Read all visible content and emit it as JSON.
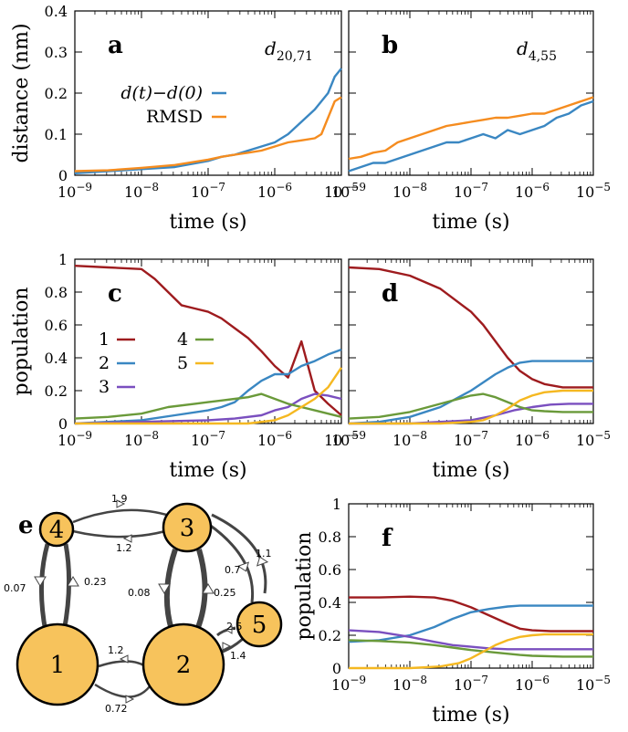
{
  "colors": {
    "red": "#9e1b1e",
    "blue": "#3a87c2",
    "purple": "#7a4fbf",
    "green": "#6a9a3a",
    "orange": "#f58c1f",
    "yellow": "#f5b821",
    "node": "#f7c35c",
    "edge": "#444444"
  },
  "chart_data": [
    {
      "id": "a",
      "type": "line",
      "letter": "a",
      "annotation": "d20,71",
      "xlabel": "time (s)",
      "ylabel": "distance (nm)",
      "xscale": "log",
      "xlim": [
        1e-09,
        1e-05
      ],
      "ylim": [
        0,
        0.4
      ],
      "yticks": [
        "0",
        "0.1",
        "0.2",
        "0.3",
        "0.4"
      ],
      "xticks": [
        "10−9",
        "10−8",
        "10−7",
        "10−6",
        "10−5"
      ],
      "legend": [
        {
          "label": "d(t)−d(0)",
          "color": "blue"
        },
        {
          "label": "RMSD",
          "color": "orange"
        }
      ],
      "series": [
        {
          "name": "d(t)−d(0)",
          "color": "blue",
          "x": [
            -9,
            -8.5,
            -8,
            -7.5,
            -7,
            -6.8,
            -6.6,
            -6.4,
            -6.2,
            -6,
            -5.8,
            -5.6,
            -5.4,
            -5.3,
            -5.2,
            -5.1,
            -5
          ],
          "y": [
            0.005,
            0.01,
            0.015,
            0.02,
            0.035,
            0.045,
            0.05,
            0.06,
            0.07,
            0.08,
            0.1,
            0.13,
            0.16,
            0.18,
            0.2,
            0.24,
            0.26
          ]
        },
        {
          "name": "RMSD",
          "color": "orange",
          "x": [
            -9,
            -8.5,
            -8,
            -7.5,
            -7,
            -6.8,
            -6.6,
            -6.4,
            -6.2,
            -6,
            -5.8,
            -5.6,
            -5.4,
            -5.3,
            -5.2,
            -5.1,
            -5
          ],
          "y": [
            0.01,
            0.012,
            0.018,
            0.025,
            0.038,
            0.045,
            0.05,
            0.055,
            0.06,
            0.07,
            0.08,
            0.085,
            0.09,
            0.1,
            0.14,
            0.18,
            0.19
          ]
        }
      ]
    },
    {
      "id": "b",
      "type": "line",
      "letter": "b",
      "annotation": "d4,55",
      "xlabel": "time (s)",
      "ylabel": "",
      "xscale": "log",
      "xlim": [
        1e-09,
        1e-05
      ],
      "ylim": [
        0,
        0.4
      ],
      "xticks": [
        "10−9",
        "10−8",
        "10−7",
        "10−6",
        "10−5"
      ],
      "series": [
        {
          "name": "d(t)−d(0)",
          "color": "blue",
          "x": [
            -9,
            -8.8,
            -8.6,
            -8.4,
            -8.2,
            -8,
            -7.8,
            -7.6,
            -7.4,
            -7.2,
            -7,
            -6.8,
            -6.6,
            -6.4,
            -6.2,
            -6,
            -5.8,
            -5.6,
            -5.4,
            -5.2,
            -5
          ],
          "y": [
            0.01,
            0.02,
            0.03,
            0.03,
            0.04,
            0.05,
            0.06,
            0.07,
            0.08,
            0.08,
            0.09,
            0.1,
            0.09,
            0.11,
            0.1,
            0.11,
            0.12,
            0.14,
            0.15,
            0.17,
            0.18
          ]
        },
        {
          "name": "RMSD",
          "color": "orange",
          "x": [
            -9,
            -8.8,
            -8.6,
            -8.4,
            -8.2,
            -8,
            -7.8,
            -7.6,
            -7.4,
            -7.2,
            -7,
            -6.8,
            -6.6,
            -6.4,
            -6.2,
            -6,
            -5.8,
            -5.6,
            -5.4,
            -5.2,
            -5
          ],
          "y": [
            0.04,
            0.045,
            0.055,
            0.06,
            0.08,
            0.09,
            0.1,
            0.11,
            0.12,
            0.125,
            0.13,
            0.135,
            0.14,
            0.14,
            0.145,
            0.15,
            0.15,
            0.16,
            0.17,
            0.18,
            0.19
          ]
        }
      ]
    },
    {
      "id": "c",
      "type": "line",
      "letter": "c",
      "xlabel": "time (s)",
      "ylabel": "population",
      "xscale": "log",
      "xlim": [
        1e-09,
        1e-05
      ],
      "ylim": [
        0,
        1
      ],
      "yticks": [
        "0",
        "0.2",
        "0.4",
        "0.6",
        "0.8",
        "1"
      ],
      "xticks": [
        "10−9",
        "10−8",
        "10−7",
        "10−6",
        "10−5"
      ],
      "legend": [
        {
          "label": "1",
          "color": "red"
        },
        {
          "label": "2",
          "color": "blue"
        },
        {
          "label": "3",
          "color": "purple"
        },
        {
          "label": "4",
          "color": "green"
        },
        {
          "label": "5",
          "color": "yellow"
        }
      ],
      "series": [
        {
          "name": "1",
          "color": "red",
          "x": [
            -9,
            -8.5,
            -8,
            -7.8,
            -7.6,
            -7.4,
            -7.2,
            -7,
            -6.8,
            -6.6,
            -6.4,
            -6.2,
            -6,
            -5.8,
            -5.6,
            -5.4,
            -5.2,
            -5
          ],
          "y": [
            0.96,
            0.95,
            0.94,
            0.88,
            0.8,
            0.72,
            0.7,
            0.68,
            0.64,
            0.58,
            0.52,
            0.44,
            0.35,
            0.28,
            0.5,
            0.2,
            0.12,
            0.05
          ]
        },
        {
          "name": "2",
          "color": "blue",
          "x": [
            -9,
            -8.5,
            -8,
            -7.5,
            -7,
            -6.8,
            -6.6,
            -6.4,
            -6.2,
            -6,
            -5.8,
            -5.6,
            -5.4,
            -5.2,
            -5
          ],
          "y": [
            0.0,
            0.01,
            0.02,
            0.05,
            0.08,
            0.1,
            0.13,
            0.2,
            0.26,
            0.3,
            0.3,
            0.35,
            0.38,
            0.42,
            0.45
          ]
        },
        {
          "name": "3",
          "color": "purple",
          "x": [
            -9,
            -8,
            -7,
            -6.6,
            -6.2,
            -6,
            -5.8,
            -5.6,
            -5.4,
            -5.2,
            -5
          ],
          "y": [
            0.0,
            0.01,
            0.02,
            0.03,
            0.05,
            0.08,
            0.1,
            0.15,
            0.18,
            0.17,
            0.15
          ]
        },
        {
          "name": "4",
          "color": "green",
          "x": [
            -9,
            -8.5,
            -8,
            -7.6,
            -7.2,
            -7,
            -6.8,
            -6.6,
            -6.4,
            -6.2,
            -6,
            -5.8,
            -5.6,
            -5.4,
            -5.2,
            -5
          ],
          "y": [
            0.03,
            0.04,
            0.06,
            0.1,
            0.12,
            0.13,
            0.14,
            0.15,
            0.16,
            0.18,
            0.15,
            0.12,
            0.1,
            0.08,
            0.06,
            0.04
          ]
        },
        {
          "name": "5",
          "color": "yellow",
          "x": [
            -9,
            -7,
            -6.4,
            -6,
            -5.8,
            -5.6,
            -5.4,
            -5.2,
            -5.1,
            -5
          ],
          "y": [
            0.0,
            0.0,
            0.0,
            0.02,
            0.05,
            0.1,
            0.15,
            0.22,
            0.28,
            0.34
          ]
        }
      ]
    },
    {
      "id": "d",
      "type": "line",
      "letter": "d",
      "xlabel": "time (s)",
      "ylabel": "",
      "xscale": "log",
      "xlim": [
        1e-09,
        1e-05
      ],
      "ylim": [
        0,
        1
      ],
      "xticks": [
        "10−9",
        "10−8",
        "10−7",
        "10−6",
        "10−5"
      ],
      "series": [
        {
          "name": "1",
          "color": "red",
          "x": [
            -9,
            -8.5,
            -8,
            -7.5,
            -7,
            -6.8,
            -6.6,
            -6.4,
            -6.2,
            -6,
            -5.8,
            -5.5,
            -5.2,
            -5
          ],
          "y": [
            0.95,
            0.94,
            0.9,
            0.82,
            0.68,
            0.6,
            0.5,
            0.4,
            0.32,
            0.27,
            0.24,
            0.22,
            0.22,
            0.22
          ]
        },
        {
          "name": "2",
          "color": "blue",
          "x": [
            -9,
            -8.5,
            -8,
            -7.5,
            -7,
            -6.8,
            -6.6,
            -6.4,
            -6.2,
            -6,
            -5.8,
            -5.5,
            -5
          ],
          "y": [
            0.0,
            0.01,
            0.04,
            0.1,
            0.2,
            0.25,
            0.3,
            0.34,
            0.37,
            0.38,
            0.38,
            0.38,
            0.38
          ]
        },
        {
          "name": "3",
          "color": "purple",
          "x": [
            -9,
            -8,
            -7.5,
            -7,
            -6.6,
            -6.3,
            -6,
            -5.7,
            -5.4,
            -5
          ],
          "y": [
            0.0,
            0.0,
            0.01,
            0.02,
            0.05,
            0.08,
            0.1,
            0.115,
            0.12,
            0.12
          ]
        },
        {
          "name": "4",
          "color": "green",
          "x": [
            -9,
            -8.5,
            -8,
            -7.5,
            -7,
            -6.8,
            -6.6,
            -6.4,
            -6.2,
            -6,
            -5.8,
            -5.5,
            -5
          ],
          "y": [
            0.03,
            0.04,
            0.07,
            0.12,
            0.17,
            0.18,
            0.16,
            0.13,
            0.1,
            0.08,
            0.075,
            0.07,
            0.07
          ]
        },
        {
          "name": "5",
          "color": "yellow",
          "x": [
            -9,
            -7.5,
            -7,
            -6.8,
            -6.6,
            -6.4,
            -6.2,
            -6,
            -5.8,
            -5.5,
            -5
          ],
          "y": [
            0.0,
            0.0,
            0.01,
            0.02,
            0.05,
            0.09,
            0.14,
            0.17,
            0.19,
            0.2,
            0.2
          ]
        }
      ]
    },
    {
      "id": "f",
      "type": "line",
      "letter": "f",
      "xlabel": "time (s)",
      "ylabel": "population",
      "xscale": "log",
      "xlim": [
        1e-09,
        1e-05
      ],
      "ylim": [
        0,
        1
      ],
      "yticks": [
        "0",
        "0.2",
        "0.4",
        "0.6",
        "0.8",
        "1"
      ],
      "xticks": [
        "10−9",
        "10−8",
        "10−7",
        "10−6",
        "10−5"
      ],
      "series": [
        {
          "name": "1",
          "color": "red",
          "x": [
            -9,
            -8.5,
            -8,
            -7.6,
            -7.3,
            -7,
            -6.7,
            -6.4,
            -6.2,
            -6,
            -5.7,
            -5.4,
            -5
          ],
          "y": [
            0.43,
            0.43,
            0.435,
            0.43,
            0.41,
            0.37,
            0.32,
            0.27,
            0.24,
            0.23,
            0.225,
            0.225,
            0.225
          ]
        },
        {
          "name": "2",
          "color": "blue",
          "x": [
            -9,
            -8.5,
            -8,
            -7.6,
            -7.3,
            -7,
            -6.7,
            -6.4,
            -6.2,
            -6,
            -5.5,
            -5
          ],
          "y": [
            0.16,
            0.17,
            0.2,
            0.25,
            0.3,
            0.34,
            0.36,
            0.375,
            0.38,
            0.38,
            0.38,
            0.38
          ]
        },
        {
          "name": "3",
          "color": "purple",
          "x": [
            -9,
            -8.5,
            -8,
            -7.6,
            -7.3,
            -7,
            -6.7,
            -6.4,
            -6,
            -5.5,
            -5
          ],
          "y": [
            0.23,
            0.22,
            0.19,
            0.16,
            0.14,
            0.13,
            0.12,
            0.115,
            0.115,
            0.115,
            0.115
          ]
        },
        {
          "name": "4",
          "color": "green",
          "x": [
            -9,
            -8.5,
            -8,
            -7.6,
            -7.3,
            -7,
            -6.6,
            -6.2,
            -6,
            -5.5,
            -5
          ],
          "y": [
            0.17,
            0.165,
            0.155,
            0.14,
            0.125,
            0.11,
            0.095,
            0.08,
            0.075,
            0.07,
            0.07
          ]
        },
        {
          "name": "5",
          "color": "yellow",
          "x": [
            -9,
            -8,
            -7.5,
            -7.2,
            -7,
            -6.8,
            -6.6,
            -6.4,
            -6.2,
            -6,
            -5.8,
            -5.5,
            -5
          ],
          "y": [
            0.0,
            0.0,
            0.01,
            0.03,
            0.06,
            0.1,
            0.14,
            0.17,
            0.19,
            0.2,
            0.205,
            0.205,
            0.205
          ]
        }
      ]
    }
  ],
  "network": {
    "letter": "e",
    "nodes": [
      {
        "label": "1"
      },
      {
        "label": "2"
      },
      {
        "label": "3"
      },
      {
        "label": "4"
      },
      {
        "label": "5"
      }
    ],
    "rates": {
      "r_3_4": "1.9",
      "r_4_3": "1.2",
      "r_4_1": "0.07",
      "r_1_4": "0.23",
      "r_3_2": "0.08",
      "r_2_3": "0.25",
      "r_2_1": "1.2",
      "r_1_2": "0.72",
      "r_3_5": "0.7",
      "r_5_3": "1.1",
      "r_5_2": "2.5",
      "r_2_5": "1.4"
    }
  }
}
